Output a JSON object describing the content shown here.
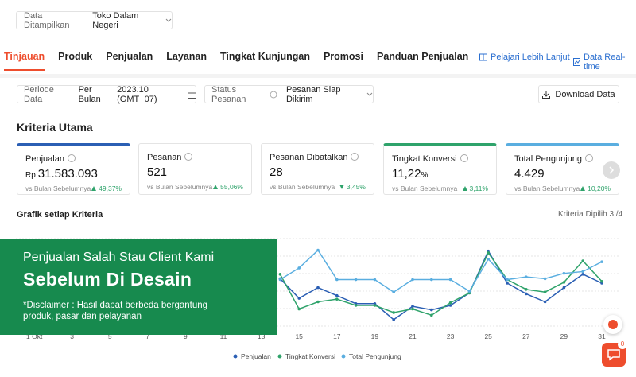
{
  "filter": {
    "label": "Data Ditampilkan",
    "value": "Toko Dalam Negeri"
  },
  "tabs": [
    "Tinjauan",
    "Produk",
    "Penjualan",
    "Layanan",
    "Tingkat Kunjungan",
    "Promosi",
    "Panduan Penjualan"
  ],
  "active_tab": 0,
  "links": [
    "Pelajari Lebih Lanjut",
    "Data Real-time"
  ],
  "period": {
    "label": "Periode Data",
    "mode": "Per Bulan",
    "value": "2023.10 (GMT+07)"
  },
  "status": {
    "label": "Status Pesanan",
    "value": "Pesanan Siap Dikirim"
  },
  "download": "Download Data",
  "section_title": "Kriteria Utama",
  "metrics": [
    {
      "title": "Penjualan",
      "prefix": "Rp",
      "value": "31.583.093",
      "compare": "vs Bulan Sebelumnya",
      "change": "49,37%",
      "direction": "up",
      "color": "#2b5fb4"
    },
    {
      "title": "Pesanan",
      "value": "521",
      "compare": "vs Bulan Sebelumnya",
      "change": "55,06%",
      "direction": "up"
    },
    {
      "title": "Pesanan Dibatalkan",
      "value": "28",
      "compare": "vs Bulan Sebelumnya",
      "change": "3,45%",
      "direction": "down"
    },
    {
      "title": "Tingkat Konversi",
      "value": "11,22",
      "suffix": "%",
      "compare": "vs Bulan Sebelumnya",
      "change": "3,11%",
      "direction": "up",
      "color": "#2fa36b"
    },
    {
      "title": "Total Pengunjung",
      "value": "4.429",
      "compare": "vs Bulan Sebelumnya",
      "change": "10,20%",
      "direction": "up",
      "color": "#5aaee0"
    }
  ],
  "chart": {
    "type": "line",
    "title": "Grafik setiap Kriteria",
    "selected": "Kriteria Dipilih 3 /4",
    "categories": [
      "1 Okt",
      null,
      "3",
      null,
      "5",
      null,
      "7",
      null,
      "9",
      null,
      "11",
      null,
      "13",
      null,
      "15",
      null,
      "17",
      null,
      "19",
      null,
      "21",
      null,
      "23",
      null,
      "25",
      null,
      "27",
      null,
      "29",
      null,
      "31"
    ],
    "ylim": [
      0,
      100
    ],
    "series": [
      {
        "name": "Penjualan",
        "color": "#2b5fb4",
        "values": [
          null,
          null,
          null,
          null,
          null,
          null,
          null,
          null,
          null,
          null,
          null,
          null,
          null,
          55,
          33,
          45,
          36,
          27,
          27,
          9,
          24,
          20,
          25,
          39,
          86,
          50,
          38,
          29,
          45,
          60,
          50
        ]
      },
      {
        "name": "Tingkat Konversi",
        "color": "#2fa36b",
        "values": [
          null,
          null,
          null,
          null,
          null,
          null,
          null,
          null,
          null,
          null,
          null,
          null,
          null,
          60,
          21,
          29,
          32,
          25,
          25,
          17,
          21,
          14,
          28,
          39,
          84,
          54,
          43,
          40,
          51,
          75,
          52
        ]
      },
      {
        "name": "Total Pengunjung",
        "color": "#5aaee0",
        "values": [
          null,
          null,
          null,
          null,
          null,
          null,
          null,
          null,
          null,
          null,
          null,
          null,
          null,
          54,
          67,
          87,
          54,
          54,
          54,
          40,
          54,
          54,
          54,
          41,
          77,
          54,
          57,
          55,
          61,
          63,
          74
        ]
      }
    ]
  },
  "overlay": {
    "title": "Penjualan Salah Stau Client Kami",
    "headline": "Sebelum Di Desain",
    "disclaimer": "*Disclaimer : Hasil dapat berbeda bergantung produk, pasar dan pelayanan"
  },
  "chat_badge": "0"
}
